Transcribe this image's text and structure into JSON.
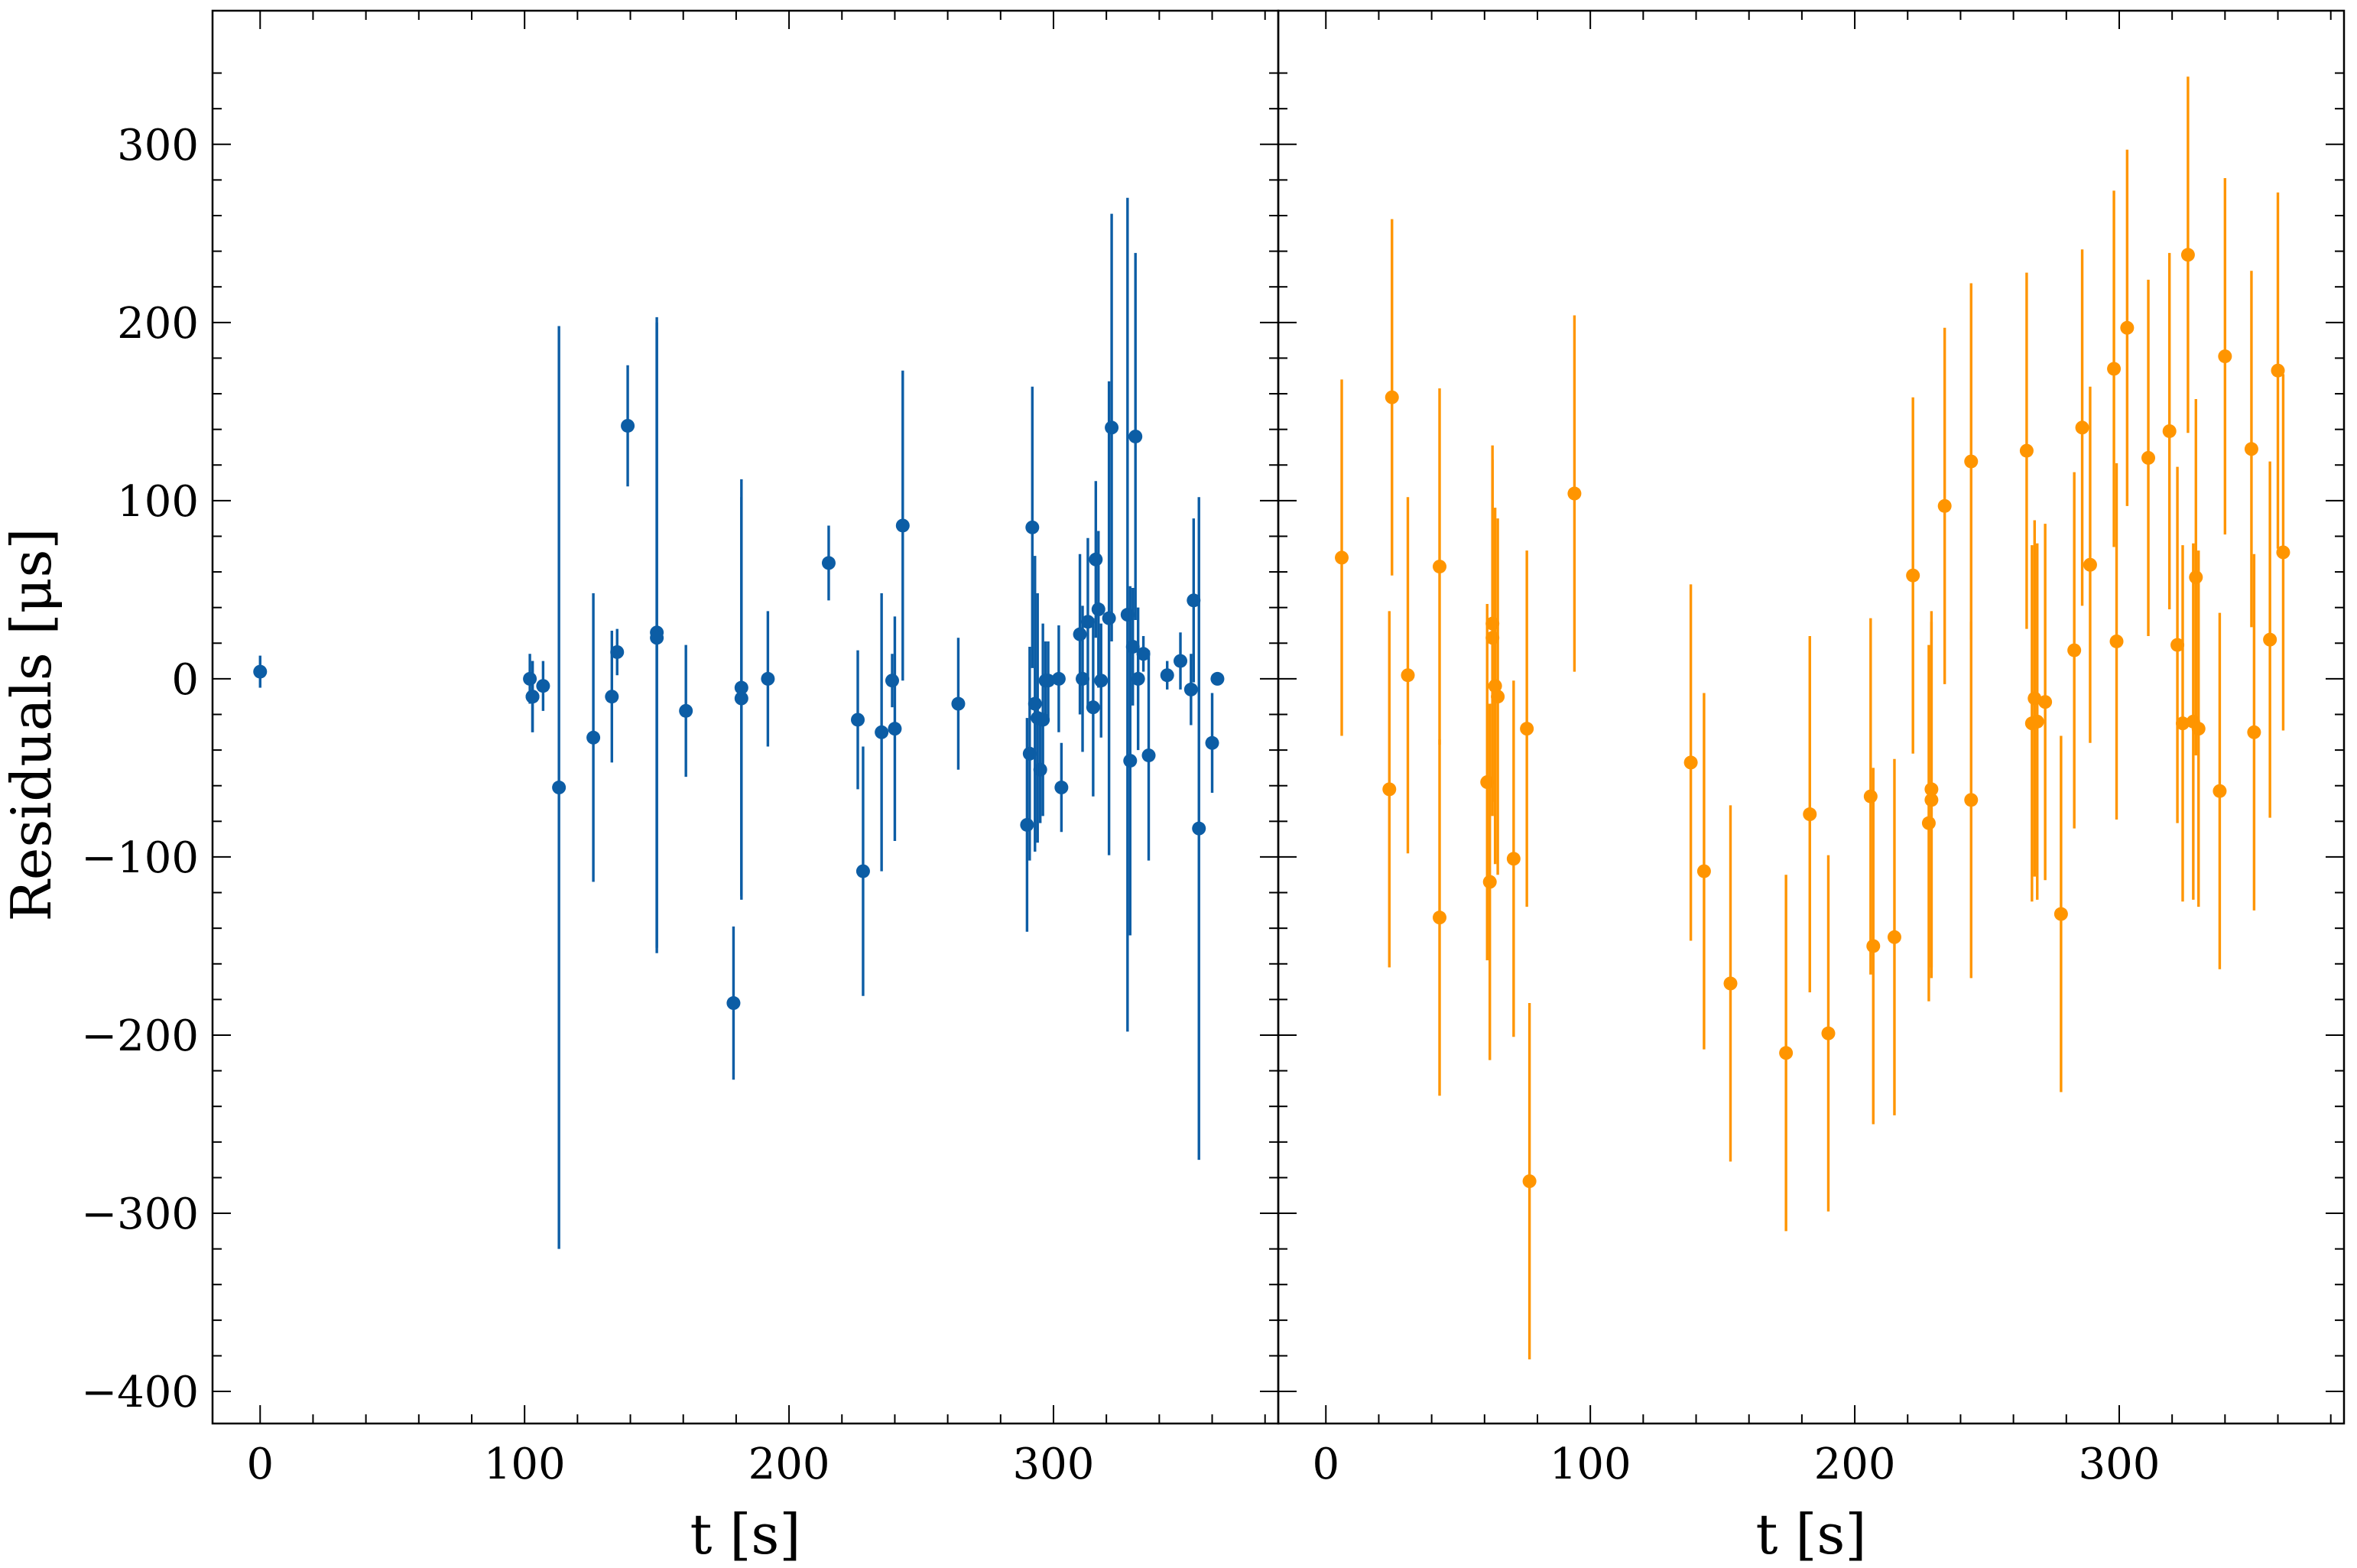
{
  "figure": {
    "ylabel": "Residuals [μs]",
    "yunit_note": ""
  },
  "chart_data": [
    {
      "type": "scatter",
      "panel": "left",
      "xlabel": "t [s]",
      "ylabel": "Residuals [μs]",
      "xlim": [
        -18,
        385
      ],
      "ylim": [
        -418,
        375
      ],
      "xticks": [
        0,
        100,
        200,
        300
      ],
      "xtick_labels": [
        "0",
        "100",
        "200",
        "300"
      ],
      "yticks": [
        -400,
        -300,
        -200,
        -100,
        0,
        100,
        200,
        300
      ],
      "ytick_labels": [
        "−400",
        "−300",
        "−200",
        "−100",
        "0",
        "100",
        "200",
        "300"
      ],
      "grid": false,
      "color": "#0c5da5",
      "series": [
        {
          "x": [
            0,
            102,
            103,
            103,
            107,
            113,
            126,
            133,
            135,
            139,
            150,
            150,
            161,
            179,
            182,
            182,
            192,
            215,
            226,
            228,
            235,
            239,
            240,
            243,
            264,
            290,
            291,
            292,
            293,
            294,
            295,
            296,
            297,
            298,
            302,
            303,
            310,
            311,
            313,
            315,
            316,
            317,
            318,
            321,
            322,
            328,
            329,
            330,
            331,
            332,
            334,
            336,
            343,
            348,
            352,
            353,
            355,
            360,
            362
          ],
          "y": [
            4,
            0,
            -10,
            -10,
            -4,
            -61,
            -33,
            -10,
            15,
            142,
            26,
            23,
            -18,
            -182,
            -5,
            -11,
            0,
            65,
            -23,
            -108,
            -30,
            -1,
            -28,
            86,
            -14,
            -82,
            -42,
            85,
            -14,
            -22,
            -51,
            -23,
            -1,
            -1,
            0,
            -61,
            25,
            0,
            32,
            -16,
            67,
            39,
            -1,
            34,
            141,
            36,
            -46,
            18,
            136,
            0,
            14,
            -43,
            2,
            10,
            -6,
            44,
            -84,
            -36,
            0
          ],
          "err": [
            9,
            14,
            20,
            20,
            14,
            259,
            81,
            37,
            13,
            34,
            177,
            177,
            37,
            43,
            117,
            113,
            38,
            21,
            39,
            70,
            78,
            15,
            63,
            87,
            37,
            60,
            60,
            79,
            83,
            70,
            30,
            54,
            22,
            22,
            30,
            25,
            45,
            41,
            47,
            50,
            44,
            44,
            32,
            133,
            120,
            234,
            98,
            33,
            103,
            40,
            10,
            59,
            8,
            16,
            20,
            46,
            186,
            28,
            0
          ]
        }
      ]
    },
    {
      "type": "scatter",
      "panel": "right",
      "xlabel": "t [s]",
      "ylabel": "",
      "xlim": [
        -18,
        385
      ],
      "ylim": [
        -418,
        375
      ],
      "xticks": [
        0,
        100,
        200,
        300
      ],
      "xtick_labels": [
        "0",
        "100",
        "200",
        "300"
      ],
      "yticks": [
        -400,
        -300,
        -200,
        -100,
        0,
        100,
        200,
        300
      ],
      "ytick_labels": [],
      "grid": false,
      "color": "#ff9500",
      "series": [
        {
          "x": [
            6,
            24,
            25,
            31,
            43,
            43,
            61,
            62,
            63,
            63,
            64,
            65,
            71,
            76,
            77,
            94,
            138,
            143,
            153,
            174,
            183,
            190,
            206,
            207,
            215,
            222,
            228,
            229,
            229,
            234,
            244,
            244,
            265,
            267,
            268,
            269,
            272,
            278,
            283,
            286,
            289,
            298,
            299,
            303,
            311,
            319,
            322,
            324,
            326,
            328,
            329,
            330,
            338,
            340,
            350,
            351,
            357,
            360,
            362
          ],
          "y": [
            68,
            -62,
            158,
            2,
            63,
            -134,
            -58,
            -114,
            23,
            31,
            -4,
            -10,
            -101,
            -28,
            -282,
            104,
            -47,
            -108,
            -171,
            -210,
            -76,
            -199,
            -66,
            -150,
            -145,
            58,
            -81,
            -68,
            -62,
            97,
            122,
            -68,
            128,
            -25,
            -11,
            -24,
            -13,
            -132,
            16,
            141,
            64,
            174,
            21,
            197,
            124,
            139,
            19,
            -25,
            238,
            -24,
            57,
            -28,
            -63,
            181,
            129,
            -30,
            22,
            173,
            71
          ],
          "err": [
            100,
            100,
            100,
            100,
            100,
            100,
            100,
            100,
            100,
            100,
            100,
            100,
            100,
            100,
            100,
            100,
            100,
            100,
            100,
            100,
            100,
            100,
            100,
            100,
            100,
            100,
            100,
            100,
            100,
            100,
            100,
            100,
            100,
            100,
            100,
            100,
            100,
            100,
            100,
            100,
            100,
            100,
            100,
            100,
            100,
            100,
            100,
            100,
            100,
            100,
            100,
            100,
            100,
            100,
            100,
            100,
            100,
            100,
            100
          ]
        }
      ]
    }
  ]
}
